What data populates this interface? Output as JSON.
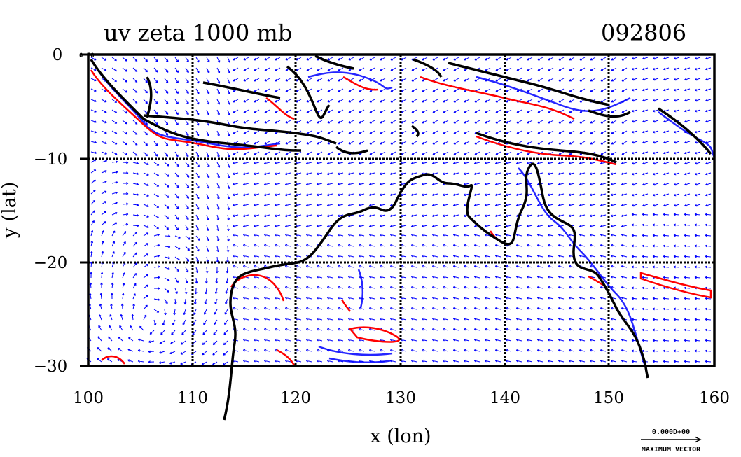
{
  "title": "uv zeta 1000 mb",
  "timestamp": "092806",
  "xlabel": "x (lon)",
  "ylabel": "y (lat)",
  "corner_label": "0 E0",
  "x_ticks": [
    "100",
    "110",
    "120",
    "130",
    "140",
    "150",
    "160"
  ],
  "y_ticks": [
    "0",
    "−10",
    "−20",
    "−30"
  ],
  "legend": {
    "magnitude": "0.000D+00",
    "label": "MAXIMUM VECTOR"
  },
  "colors": {
    "frame": "#000000",
    "vector": "#0000ff",
    "positive_contour": "#ff0000",
    "negative_contour": "#0000ff",
    "coastline": "#000000",
    "grid": "#000000"
  },
  "map_data": {
    "region": {
      "lon_range": [
        100,
        160
      ],
      "lat_range": [
        -30,
        0
      ]
    },
    "grid_lons": [
      110,
      120,
      130,
      140,
      150
    ],
    "grid_lats": [
      -10,
      -20
    ],
    "field": "uv zeta",
    "level": "1000 mb"
  }
}
